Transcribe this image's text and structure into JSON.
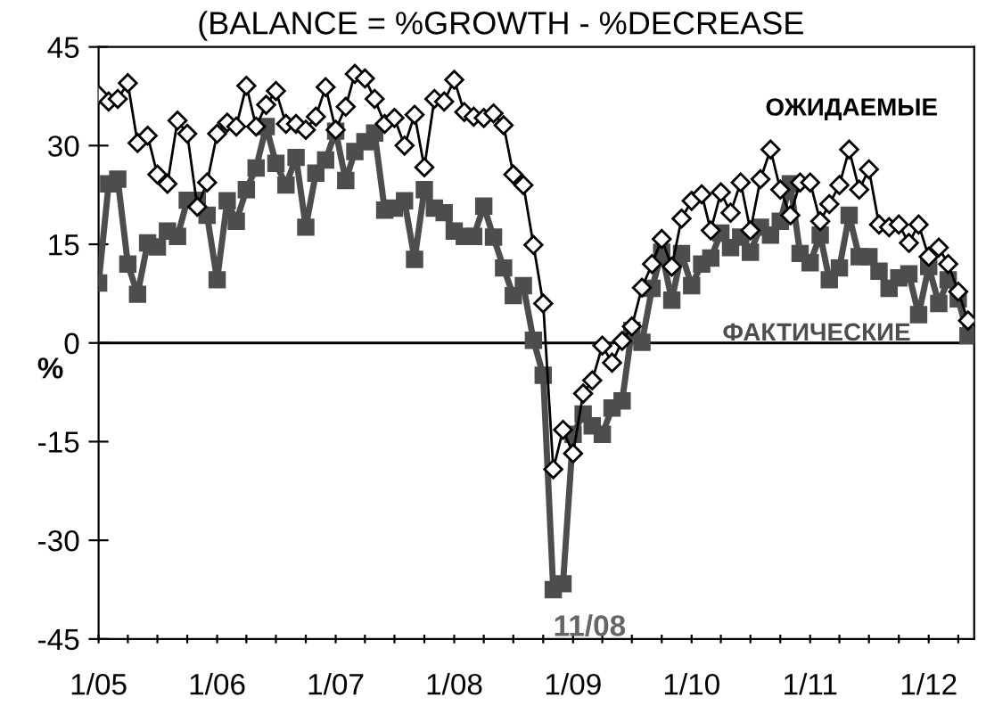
{
  "chart_data": {
    "type": "line",
    "title": "(BALANCE = %GROWTH - %DECREASE",
    "ylabel": "%",
    "x": [
      "2005-01",
      "2005-02",
      "2005-03",
      "2005-04",
      "2005-05",
      "2005-06",
      "2005-07",
      "2005-08",
      "2005-09",
      "2005-10",
      "2005-11",
      "2005-12",
      "2006-01",
      "2006-02",
      "2006-03",
      "2006-04",
      "2006-05",
      "2006-06",
      "2006-07",
      "2006-08",
      "2006-09",
      "2006-10",
      "2006-11",
      "2006-12",
      "2007-01",
      "2007-02",
      "2007-03",
      "2007-04",
      "2007-05",
      "2007-06",
      "2007-07",
      "2007-08",
      "2007-09",
      "2007-10",
      "2007-11",
      "2007-12",
      "2008-01",
      "2008-02",
      "2008-03",
      "2008-04",
      "2008-05",
      "2008-06",
      "2008-07",
      "2008-08",
      "2008-09",
      "2008-10",
      "2008-11",
      "2008-12",
      "2009-01",
      "2009-02",
      "2009-03",
      "2009-04",
      "2009-05",
      "2009-06",
      "2009-07",
      "2009-08",
      "2009-09",
      "2009-10",
      "2009-11",
      "2009-12",
      "2010-01",
      "2010-02",
      "2010-03",
      "2010-04",
      "2010-05",
      "2010-06",
      "2010-07",
      "2010-08",
      "2010-09",
      "2010-10",
      "2010-11",
      "2010-12",
      "2011-01",
      "2011-02",
      "2011-03",
      "2011-04",
      "2011-05",
      "2011-06",
      "2011-07",
      "2011-08",
      "2011-09",
      "2011-10",
      "2011-11",
      "2011-12",
      "2012-01",
      "2012-02",
      "2012-03",
      "2012-04",
      "2012-05"
    ],
    "series": [
      {
        "name": "ОЖИДАЕМЫЕ",
        "color": "#000000",
        "marker": "diamond",
        "values": [
          37.7,
          36.7,
          37.1,
          39.5,
          30.4,
          31.5,
          25.6,
          24.2,
          33.8,
          31.8,
          20.7,
          24.4,
          31.8,
          33.5,
          32.9,
          39.1,
          32.9,
          36.2,
          38.3,
          33.3,
          33.3,
          32.4,
          34.4,
          38.9,
          32.4,
          35.9,
          40.9,
          40.2,
          37.1,
          33.3,
          34.2,
          30,
          34.7,
          26.7,
          37.1,
          36.7,
          40,
          35.1,
          34.4,
          34.2,
          34.9,
          33.1,
          25.6,
          24,
          14.9,
          6,
          -19.2,
          -13.2,
          -16.8,
          -7.7,
          -5.7,
          -0.4,
          -3,
          0.3,
          2.5,
          8.4,
          12,
          15.8,
          11.6,
          18.9,
          21.6,
          22.6,
          17.1,
          22.9,
          19.8,
          24.4,
          17.1,
          24.9,
          29.4,
          23.3,
          19.4,
          24.4,
          24.4,
          18.5,
          21.1,
          24,
          29.4,
          23.3,
          26.4,
          18,
          17.6,
          18,
          15.2,
          18,
          13.1,
          14.5,
          12,
          7.8,
          3.4
        ]
      },
      {
        "name": "ФАКТИЧЕСКИЕ",
        "color": "#4d4d4d",
        "marker": "square",
        "values": [
          9.1,
          24.2,
          24.9,
          12,
          7.4,
          15.2,
          14.6,
          17,
          16.2,
          21.7,
          21.7,
          19.4,
          9.6,
          21.6,
          18.5,
          23.3,
          26.6,
          32.9,
          27.3,
          24,
          28.2,
          17.6,
          25.8,
          27.8,
          32.2,
          24.7,
          29.1,
          30.6,
          31.9,
          20.2,
          20.5,
          21.6,
          12.7,
          23.3,
          20.5,
          19.8,
          17,
          16.2,
          16.2,
          20.8,
          16.1,
          11.4,
          7.2,
          8.7,
          0.4,
          -4.9,
          -37.5,
          -36.6,
          -13.9,
          -10.8,
          -12.6,
          -13.9,
          -9.9,
          -8.8,
          1.9,
          0.1,
          8.3,
          13.8,
          6.5,
          13.6,
          8.7,
          12,
          12.9,
          16.7,
          14.5,
          16.1,
          13.8,
          17.6,
          16.4,
          18.5,
          24.2,
          13.6,
          12.2,
          16.4,
          9.6,
          11.4,
          19.4,
          13.1,
          13.1,
          10.9,
          8.3,
          9.9,
          10.5,
          4.3,
          11.6,
          6,
          9.6,
          6.7,
          1.1
        ]
      }
    ],
    "xlim": [
      "2005-01-01",
      "2012-05-20"
    ],
    "xticks": [
      {
        "value": "2005-01",
        "label": "1/05"
      },
      {
        "value": "2005-04",
        "label": null
      },
      {
        "value": "2005-07",
        "label": null
      },
      {
        "value": "2005-10",
        "label": null
      },
      {
        "value": "2006-01",
        "label": "1/06"
      },
      {
        "value": "2006-04",
        "label": null
      },
      {
        "value": "2006-07",
        "label": null
      },
      {
        "value": "2006-10",
        "label": null
      },
      {
        "value": "2007-01",
        "label": "1/07"
      },
      {
        "value": "2007-04",
        "label": null
      },
      {
        "value": "2007-07",
        "label": null
      },
      {
        "value": "2007-10",
        "label": null
      },
      {
        "value": "2008-01",
        "label": "1/08"
      },
      {
        "value": "2008-04",
        "label": null
      },
      {
        "value": "2008-07",
        "label": null
      },
      {
        "value": "2008-10",
        "label": null
      },
      {
        "value": "2009-01",
        "label": "1/09"
      },
      {
        "value": "2009-04",
        "label": null
      },
      {
        "value": "2009-07",
        "label": null
      },
      {
        "value": "2009-10",
        "label": null
      },
      {
        "value": "2010-01",
        "label": "1/10"
      },
      {
        "value": "2010-04",
        "label": null
      },
      {
        "value": "2010-07",
        "label": null
      },
      {
        "value": "2010-10",
        "label": null
      },
      {
        "value": "2011-01",
        "label": "1/11"
      },
      {
        "value": "2011-04",
        "label": null
      },
      {
        "value": "2011-07",
        "label": null
      },
      {
        "value": "2011-10",
        "label": null
      },
      {
        "value": "2012-01",
        "label": "1/12"
      },
      {
        "value": "2012-04",
        "label": null
      }
    ],
    "ylim": [
      -45,
      45
    ],
    "yticks": [
      -45,
      -30,
      -15,
      0,
      15,
      30,
      45
    ],
    "ref_lines": [
      {
        "axis": "y",
        "value": 0,
        "color": "#000000"
      }
    ],
    "annotations": [
      {
        "text": "11/08",
        "x": "2008-11",
        "y": -37.5
      }
    ],
    "line_style": "solid",
    "grid": false,
    "legend": false
  }
}
